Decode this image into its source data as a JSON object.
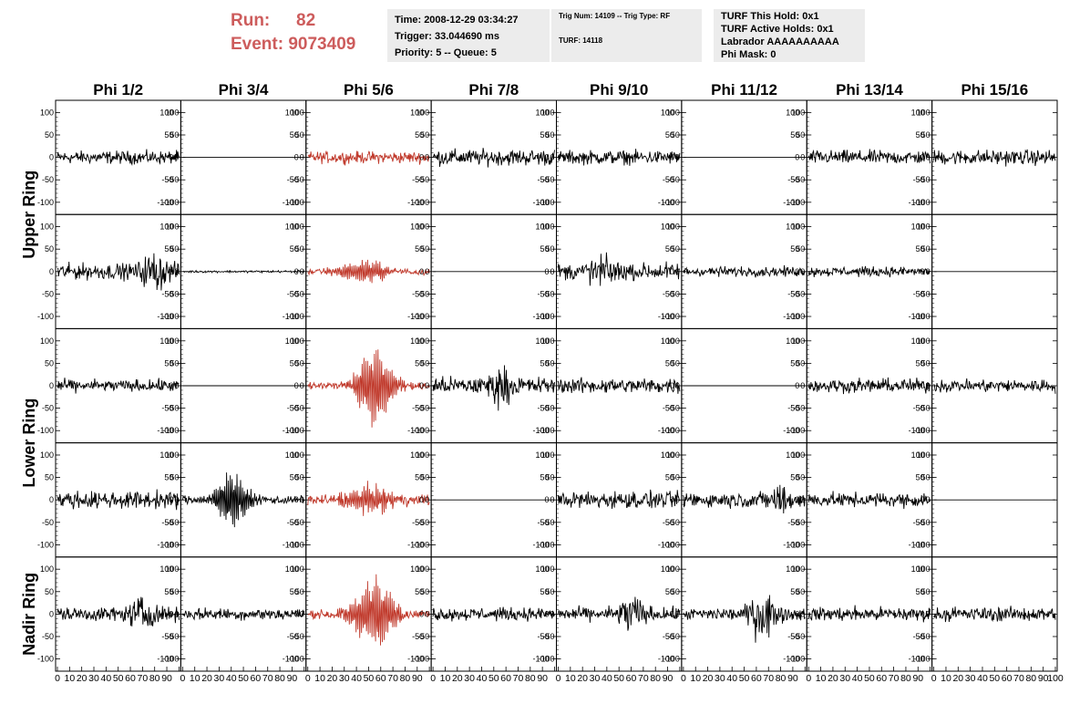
{
  "header": {
    "run_label": "Run:",
    "run_value": "82",
    "event_label": "Event:",
    "event_value": "9073409",
    "time_line": "Time: 2008-12-29 03:34:27",
    "trigger_line": "Trigger: 33.044690 ms",
    "priority_line": "Priority: 5 -- Queue: 5",
    "trig_line": "Trig Num: 14109 -- Trig Type: RF",
    "turf_line": "TURF: 14118",
    "turf_hold_line": "TURF This Hold: 0x1",
    "turf_active_line": "TURF Active Holds: 0x1",
    "labrador_line": "Labrador AAAAAAAAAA",
    "phi_mask_line": "Phi Mask: 0"
  },
  "colors": {
    "header_red": "#cd5c5c",
    "trace_black": "#000000",
    "trace_red": "#c0392b",
    "box_bg": "#ececec"
  },
  "chart_data": {
    "type": "line",
    "columns": [
      "Phi 1/2",
      "Phi 3/4",
      "Phi 5/6",
      "Phi 7/8",
      "Phi 9/10",
      "Phi 11/12",
      "Phi 13/14",
      "Phi 15/16"
    ],
    "row_labels": [
      "Upper Ring",
      "Lower Ring",
      "Nadir Ring"
    ],
    "ylim": [
      -115,
      115
    ],
    "xlim": [
      0,
      100
    ],
    "y_ticks": [
      100,
      50,
      0,
      -50,
      -100
    ],
    "x_tick_labels": [
      "0",
      "10",
      "20",
      "30",
      "40",
      "50",
      "60",
      "70",
      "80",
      "90",
      "100"
    ],
    "grid": false,
    "rows": [
      {
        "panels": [
          {
            "type": "noise",
            "amp": 12,
            "color": "black"
          },
          {
            "type": "flat",
            "color": "black"
          },
          {
            "type": "noise",
            "amp": 11,
            "color": "red"
          },
          {
            "type": "noise",
            "amp": 15,
            "color": "black"
          },
          {
            "type": "noise",
            "amp": 13,
            "color": "black"
          },
          {
            "type": "flat",
            "color": "black"
          },
          {
            "type": "noise",
            "amp": 13,
            "color": "black"
          },
          {
            "type": "noise",
            "amp": 14,
            "color": "black"
          }
        ]
      },
      {
        "panels": [
          {
            "type": "noise",
            "amp": 15,
            "color": "black",
            "burst_center": 80,
            "burst_amp": 25
          },
          {
            "type": "noise",
            "amp": 2,
            "color": "black"
          },
          {
            "type": "pulse",
            "amp": 6,
            "peak": 28,
            "center": 45,
            "width": 20,
            "color": "red"
          },
          {
            "type": "flat",
            "color": "black"
          },
          {
            "type": "noise",
            "amp": 16,
            "color": "black",
            "burst_center": 35,
            "burst_amp": 18
          },
          {
            "type": "noise",
            "amp": 9,
            "color": "black"
          },
          {
            "type": "noise",
            "amp": 9,
            "color": "black"
          },
          {
            "type": "flat",
            "color": "black"
          }
        ]
      },
      {
        "panels": [
          {
            "type": "noise",
            "amp": 11,
            "color": "black"
          },
          {
            "type": "flat",
            "color": "black"
          },
          {
            "type": "pulse",
            "amp": 8,
            "peak": 95,
            "center": 55,
            "width": 16,
            "color": "red"
          },
          {
            "type": "noise",
            "amp": 16,
            "color": "black",
            "burst_center": 55,
            "burst_amp": 22
          },
          {
            "type": "noise",
            "amp": 14,
            "color": "black"
          },
          {
            "type": "flat",
            "color": "black"
          },
          {
            "type": "noise",
            "amp": 13,
            "color": "black"
          },
          {
            "type": "noise",
            "amp": 12,
            "color": "black"
          }
        ]
      },
      {
        "panels": [
          {
            "type": "noise",
            "amp": 16,
            "color": "black"
          },
          {
            "type": "pulse",
            "amp": 8,
            "peak": 65,
            "center": 40,
            "width": 14,
            "color": "black"
          },
          {
            "type": "pulse",
            "amp": 10,
            "peak": 32,
            "center": 50,
            "width": 20,
            "color": "red"
          },
          {
            "type": "flat",
            "color": "black"
          },
          {
            "type": "noise",
            "amp": 16,
            "color": "black"
          },
          {
            "type": "noise",
            "amp": 14,
            "color": "black",
            "burst_center": 80,
            "burst_amp": 18
          },
          {
            "type": "noise",
            "amp": 13,
            "color": "black"
          },
          {
            "type": "flat",
            "color": "black"
          }
        ]
      },
      {
        "panels": [
          {
            "type": "noise",
            "amp": 13,
            "color": "black",
            "burst_center": 70,
            "burst_amp": 22
          },
          {
            "type": "noise",
            "amp": 11,
            "color": "black"
          },
          {
            "type": "pulse",
            "amp": 8,
            "peak": 85,
            "center": 55,
            "width": 18,
            "color": "red"
          },
          {
            "type": "noise",
            "amp": 12,
            "color": "black"
          },
          {
            "type": "noise",
            "amp": 12,
            "color": "black",
            "burst_center": 60,
            "burst_amp": 30
          },
          {
            "type": "noise",
            "amp": 12,
            "color": "black",
            "burst_center": 65,
            "burst_amp": 40
          },
          {
            "type": "noise",
            "amp": 13,
            "color": "black"
          },
          {
            "type": "noise",
            "amp": 13,
            "color": "black"
          }
        ]
      }
    ]
  }
}
